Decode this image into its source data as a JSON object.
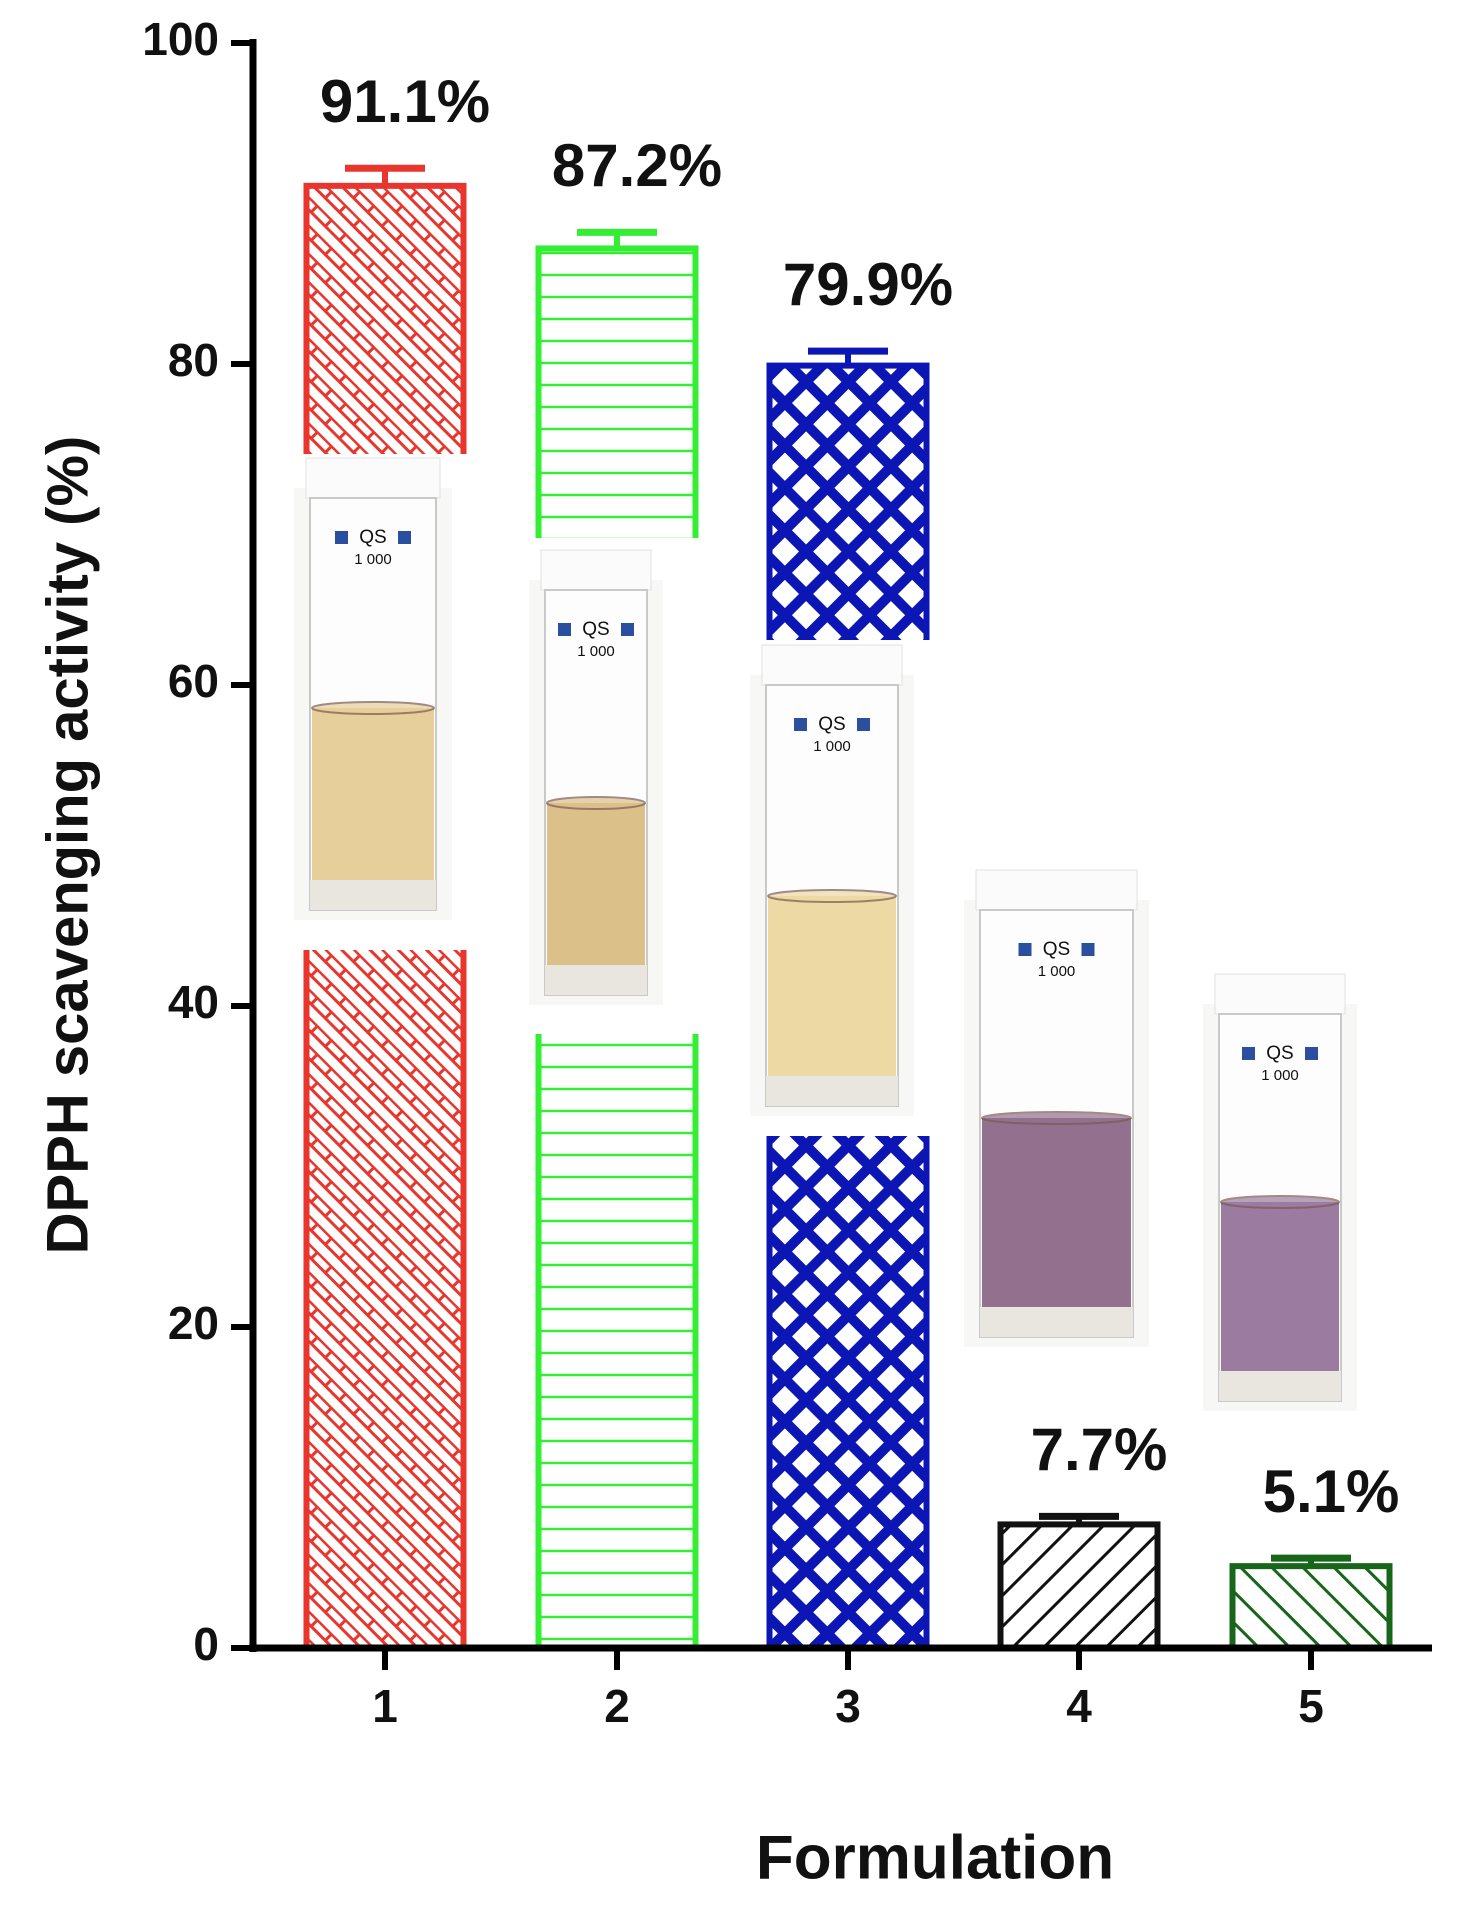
{
  "chart_data": {
    "type": "bar",
    "y_label": "DPPH scavenging activity (%)",
    "x_label": "Formulation",
    "categories": [
      "1",
      "2",
      "3",
      "4",
      "5"
    ],
    "values": [
      91.1,
      87.2,
      79.9,
      7.7,
      5.1
    ],
    "value_labels": [
      "91.1%",
      "87.2%",
      "79.9%",
      "7.7%",
      "5.1%"
    ],
    "errors": [
      1.1,
      1.0,
      0.9,
      0.5,
      0.5
    ],
    "colors": [
      "#e8352d",
      "#33ee33",
      "#0b16b4",
      "#111111",
      "#17661a"
    ],
    "ylim": [
      0,
      100
    ],
    "yticks": [
      0,
      20,
      40,
      60,
      80,
      100
    ],
    "grid": false
  },
  "cuvette": {
    "label": "QS",
    "number": "1 000"
  }
}
